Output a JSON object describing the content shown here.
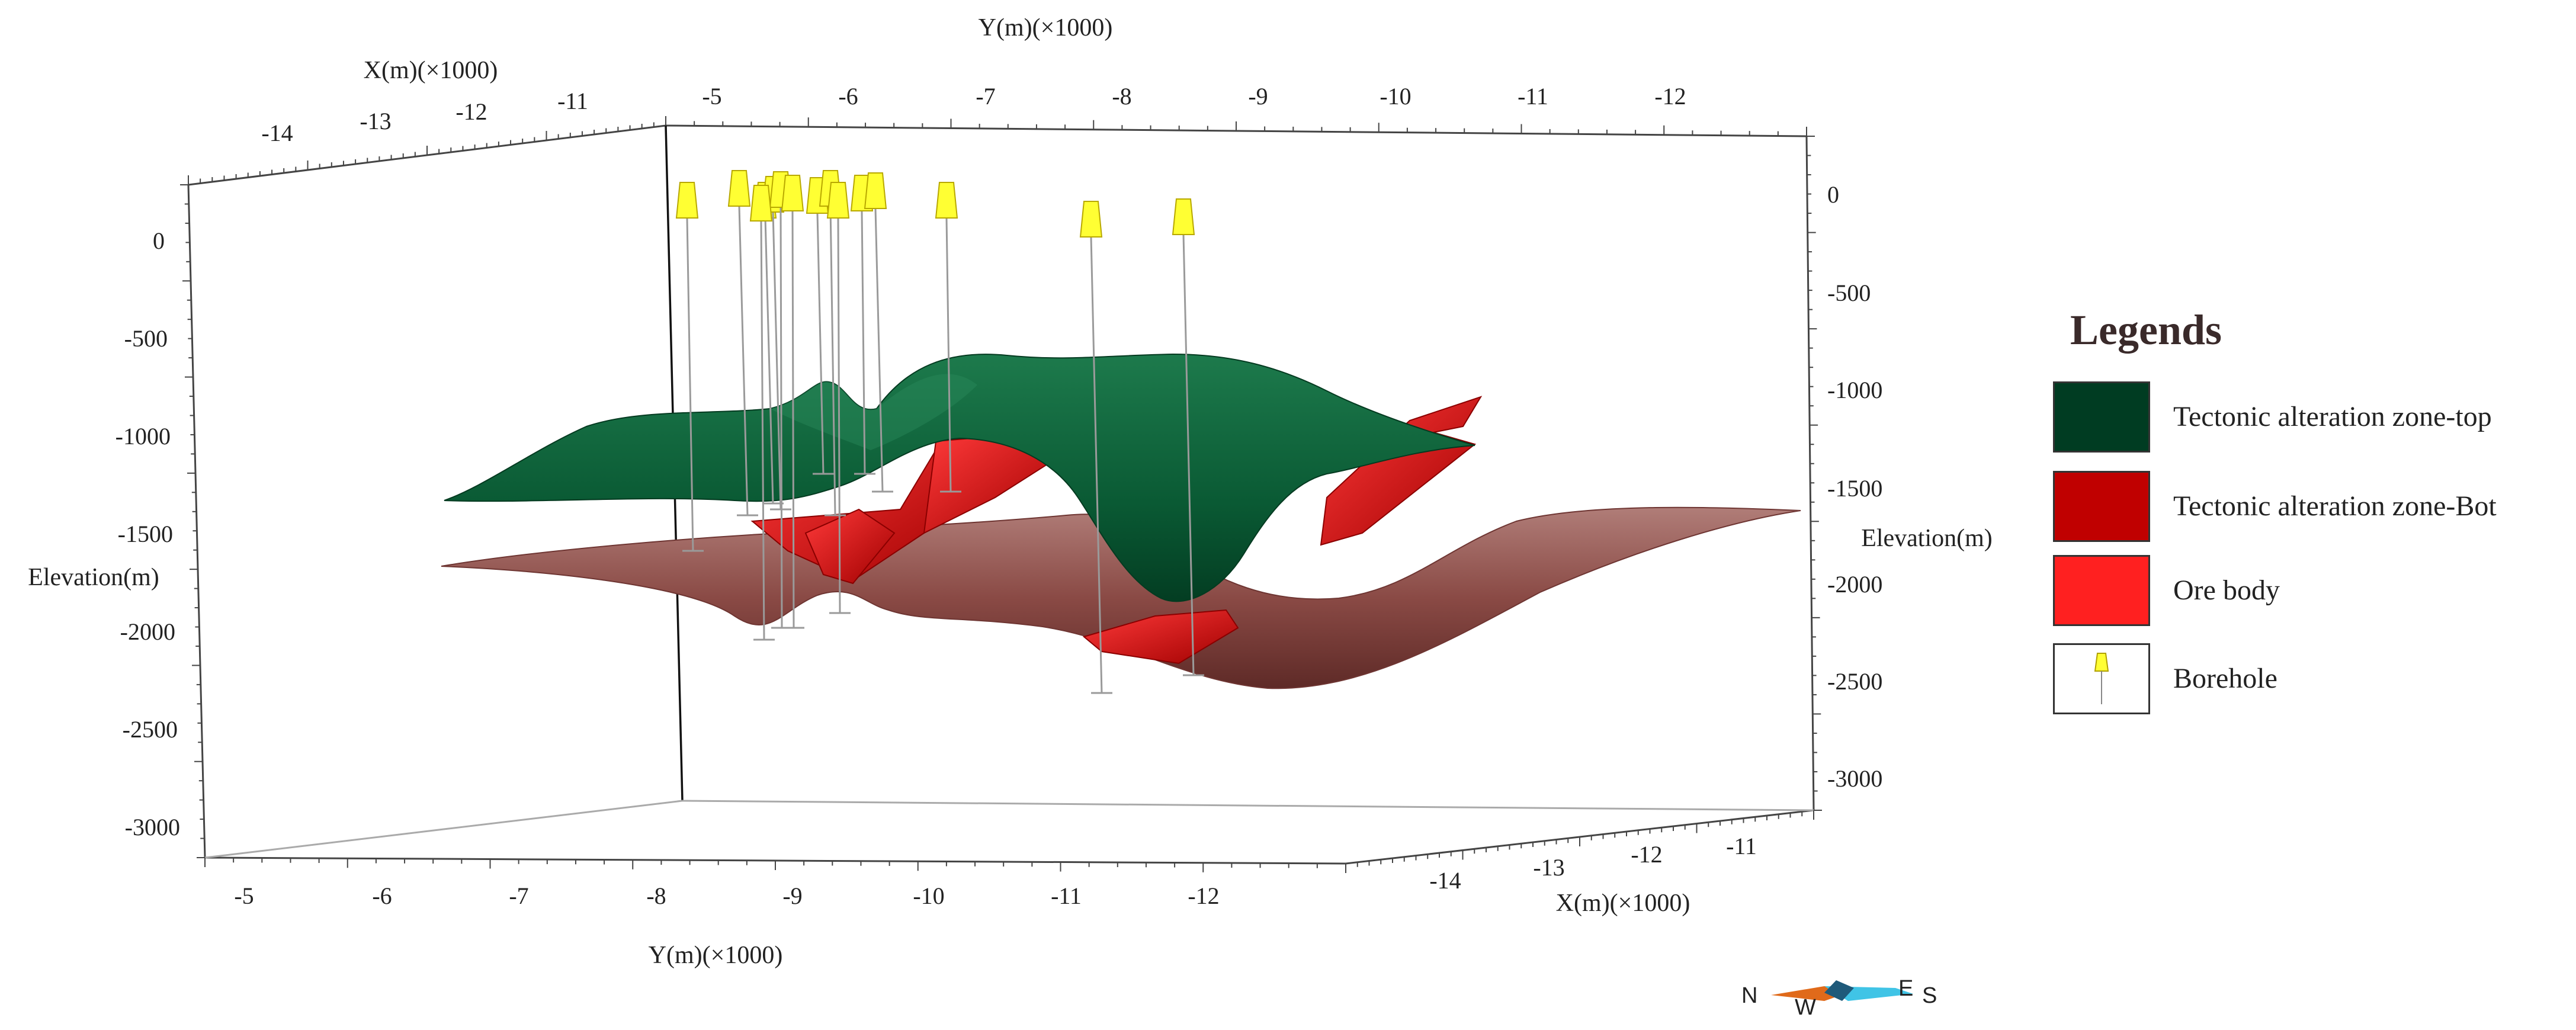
{
  "axes": {
    "top_y_label": "Y(m)(×1000)",
    "top_x_label": "X(m)(×1000)",
    "bottom_y_label": "Y(m)(×1000)",
    "bottom_x_label": "X(m)(×1000)",
    "left_elev_label": "Elevation(m)",
    "right_elev_label": "Elevation(m)",
    "top_y_ticks": [
      "-5",
      "-6",
      "-7",
      "-8",
      "-9",
      "-10",
      "-11",
      "-12"
    ],
    "top_x_ticks": [
      "-14",
      "-13",
      "-12",
      "-11"
    ],
    "bottom_y_ticks": [
      "-5",
      "-6",
      "-7",
      "-8",
      "-9",
      "-10",
      "-11",
      "-12"
    ],
    "bottom_x_ticks": [
      "-14",
      "-13",
      "-12",
      "-11"
    ],
    "left_elev_ticks": [
      "0",
      "-500",
      "-1000",
      "-1500",
      "-2000",
      "-2500",
      "-3000"
    ],
    "right_elev_ticks": [
      "0",
      "-500",
      "-1000",
      "-1500",
      "-2000",
      "-2500",
      "-3000"
    ]
  },
  "legend": {
    "title": "Legends",
    "items": [
      {
        "label": "Tectonic alteration zone-top",
        "color": "#003c22"
      },
      {
        "label": "Tectonic alteration zone-Bot",
        "color": "#c00000"
      },
      {
        "label": "Ore body",
        "color": "#ff2020"
      },
      {
        "label": "Borehole",
        "color": "#ffff33"
      }
    ]
  },
  "compass": {
    "n": "N",
    "w": "W",
    "e": "E",
    "s": "S"
  },
  "colors": {
    "top_surface": "#0b5a36",
    "bottom_surface": "#8a4a45",
    "ore_body": "#e21a1a",
    "borehole": "#ffff33"
  }
}
